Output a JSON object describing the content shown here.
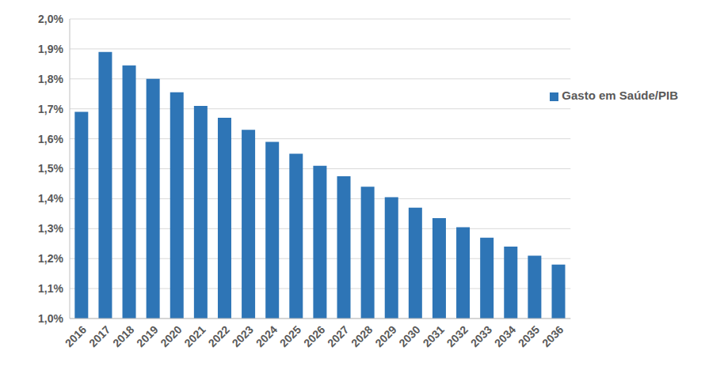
{
  "chart_data": {
    "type": "bar",
    "categories": [
      "2016",
      "2017",
      "2018",
      "2019",
      "2020",
      "2021",
      "2022",
      "2023",
      "2024",
      "2025",
      "2026",
      "2027",
      "2028",
      "2029",
      "2030",
      "2031",
      "2032",
      "2033",
      "2034",
      "2035",
      "2036"
    ],
    "series": [
      {
        "name": "Gasto em Saúde/PIB",
        "color": "#2e75b6",
        "values": [
          1.69,
          1.89,
          1.845,
          1.8,
          1.755,
          1.71,
          1.67,
          1.63,
          1.59,
          1.55,
          1.51,
          1.475,
          1.44,
          1.405,
          1.37,
          1.335,
          1.305,
          1.27,
          1.24,
          1.21,
          1.18
        ]
      }
    ],
    "ylim": [
      1.0,
      2.0
    ],
    "yticks": [
      {
        "value": 1.0,
        "label": "1,0%"
      },
      {
        "value": 1.1,
        "label": "1,1%"
      },
      {
        "value": 1.2,
        "label": "1,2%"
      },
      {
        "value": 1.3,
        "label": "1,3%"
      },
      {
        "value": 1.4,
        "label": "1,4%"
      },
      {
        "value": 1.5,
        "label": "1,5%"
      },
      {
        "value": 1.6,
        "label": "1,6%"
      },
      {
        "value": 1.7,
        "label": "1,7%"
      },
      {
        "value": 1.8,
        "label": "1,8%"
      },
      {
        "value": 1.9,
        "label": "1,9%"
      },
      {
        "value": 2.0,
        "label": "2,0%"
      }
    ],
    "grid": true,
    "legend": "upper right"
  }
}
